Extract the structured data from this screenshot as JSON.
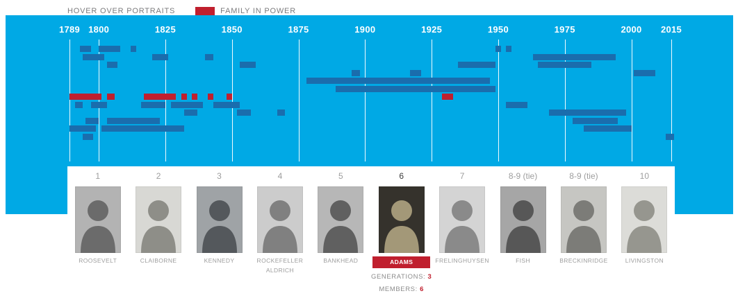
{
  "legend": {
    "hover_hint": "HOVER OVER PORTRAITS",
    "swatch_label": "FAMILY IN POWER"
  },
  "colors": {
    "panel_blue": "#00a9e5",
    "bar_blue": "#1a6dad",
    "bar_red": "#c01f2e",
    "tick_white": "#ffffff"
  },
  "chart_data": {
    "type": "timeline",
    "title": "Political families in power (highlighted family: Adams)",
    "x_axis": {
      "min": 1789,
      "max": 2015,
      "ticks": [
        1789,
        1800,
        1825,
        1850,
        1875,
        1900,
        1925,
        1950,
        1975,
        2000,
        2015
      ]
    },
    "grid": "vertical-white-ticks",
    "rows": [
      {
        "segments": [
          {
            "start": 1793,
            "end": 1797,
            "color": "blue"
          },
          {
            "start": 1800,
            "end": 1808,
            "color": "blue"
          },
          {
            "start": 1812,
            "end": 1814,
            "color": "blue"
          },
          {
            "start": 1949,
            "end": 1951,
            "color": "blue"
          },
          {
            "start": 1953,
            "end": 1955,
            "color": "blue"
          }
        ]
      },
      {
        "segments": [
          {
            "start": 1794,
            "end": 1802,
            "color": "blue"
          },
          {
            "start": 1820,
            "end": 1826,
            "color": "blue"
          },
          {
            "start": 1840,
            "end": 1843,
            "color": "blue"
          },
          {
            "start": 1963,
            "end": 1994,
            "color": "blue"
          }
        ]
      },
      {
        "segments": [
          {
            "start": 1803,
            "end": 1807,
            "color": "blue"
          },
          {
            "start": 1853,
            "end": 1859,
            "color": "blue"
          },
          {
            "start": 1935,
            "end": 1949,
            "color": "blue"
          },
          {
            "start": 1965,
            "end": 1985,
            "color": "blue"
          }
        ]
      },
      {
        "segments": [
          {
            "start": 1895,
            "end": 1898,
            "color": "blue"
          },
          {
            "start": 1917,
            "end": 1921,
            "color": "blue"
          },
          {
            "start": 2001,
            "end": 2009,
            "color": "blue"
          }
        ]
      },
      {
        "segments": [
          {
            "start": 1878,
            "end": 1947,
            "color": "blue"
          }
        ]
      },
      {
        "segments": [
          {
            "start": 1889,
            "end": 1949,
            "color": "blue"
          }
        ]
      },
      {
        "segments": [
          {
            "start": 1789,
            "end": 1801,
            "color": "red"
          },
          {
            "start": 1803,
            "end": 1806,
            "color": "red"
          },
          {
            "start": 1817,
            "end": 1829,
            "color": "red"
          },
          {
            "start": 1831,
            "end": 1833,
            "color": "red"
          },
          {
            "start": 1835,
            "end": 1837,
            "color": "red"
          },
          {
            "start": 1841,
            "end": 1843,
            "color": "red"
          },
          {
            "start": 1848,
            "end": 1850,
            "color": "red"
          },
          {
            "start": 1929,
            "end": 1933,
            "color": "red"
          }
        ]
      },
      {
        "segments": [
          {
            "start": 1791,
            "end": 1794,
            "color": "blue"
          },
          {
            "start": 1797,
            "end": 1803,
            "color": "blue"
          },
          {
            "start": 1816,
            "end": 1825,
            "color": "blue"
          },
          {
            "start": 1827,
            "end": 1839,
            "color": "blue"
          },
          {
            "start": 1843,
            "end": 1853,
            "color": "blue"
          },
          {
            "start": 1953,
            "end": 1961,
            "color": "blue"
          }
        ]
      },
      {
        "segments": [
          {
            "start": 1832,
            "end": 1837,
            "color": "blue"
          },
          {
            "start": 1852,
            "end": 1857,
            "color": "blue"
          },
          {
            "start": 1867,
            "end": 1870,
            "color": "blue"
          },
          {
            "start": 1969,
            "end": 1998,
            "color": "blue"
          }
        ]
      },
      {
        "segments": [
          {
            "start": 1795,
            "end": 1800,
            "color": "blue"
          },
          {
            "start": 1803,
            "end": 1823,
            "color": "blue"
          },
          {
            "start": 1978,
            "end": 1995,
            "color": "blue"
          }
        ]
      },
      {
        "segments": [
          {
            "start": 1789,
            "end": 1799,
            "color": "blue"
          },
          {
            "start": 1801,
            "end": 1832,
            "color": "blue"
          },
          {
            "start": 1982,
            "end": 2000,
            "color": "blue"
          }
        ]
      },
      {
        "segments": [
          {
            "start": 1794,
            "end": 1798,
            "color": "blue"
          },
          {
            "start": 2013,
            "end": 2016,
            "color": "blue"
          }
        ]
      }
    ]
  },
  "ranking": [
    {
      "rank": "1",
      "name": "ROOSEVELT",
      "name2": "",
      "selected": false,
      "portrait": {
        "bg": "#b3b3b3",
        "fg": "#6b6b6b"
      }
    },
    {
      "rank": "2",
      "name": "CLAIBORNE",
      "name2": "",
      "selected": false,
      "portrait": {
        "bg": "#d8d8d4",
        "fg": "#8e8e88"
      }
    },
    {
      "rank": "3",
      "name": "KENNEDY",
      "name2": "",
      "selected": false,
      "portrait": {
        "bg": "#9fa3a6",
        "fg": "#54585c"
      }
    },
    {
      "rank": "4",
      "name": "ROCKEFELLER",
      "name2": "ALDRICH",
      "selected": false,
      "portrait": {
        "bg": "#cccccc",
        "fg": "#808080"
      }
    },
    {
      "rank": "5",
      "name": "BANKHEAD",
      "name2": "",
      "selected": false,
      "portrait": {
        "bg": "#b7b7b7",
        "fg": "#606060"
      }
    },
    {
      "rank": "6",
      "name": "ADAMS",
      "name2": "",
      "selected": true,
      "portrait": {
        "bg": "#35322c",
        "fg": "#a39878"
      }
    },
    {
      "rank": "7",
      "name": "FRELINGHUYSEN",
      "name2": "",
      "selected": false,
      "portrait": {
        "bg": "#d4d4d4",
        "fg": "#8a8a8a"
      }
    },
    {
      "rank": "8-9 (tie)",
      "name": "FISH",
      "name2": "",
      "selected": false,
      "portrait": {
        "bg": "#a6a6a6",
        "fg": "#575757"
      }
    },
    {
      "rank": "8-9 (tie)",
      "name": "BRECKINRIDGE",
      "name2": "",
      "selected": false,
      "portrait": {
        "bg": "#c6c6c2",
        "fg": "#7c7c78"
      }
    },
    {
      "rank": "10",
      "name": "LIVINGSTON",
      "name2": "",
      "selected": false,
      "portrait": {
        "bg": "#dcdcd8",
        "fg": "#96968f"
      }
    }
  ],
  "selected_stats": {
    "generations_label": "GENERATIONS:",
    "generations_value": "3",
    "members_label": "MEMBERS:",
    "members_value": "6"
  }
}
